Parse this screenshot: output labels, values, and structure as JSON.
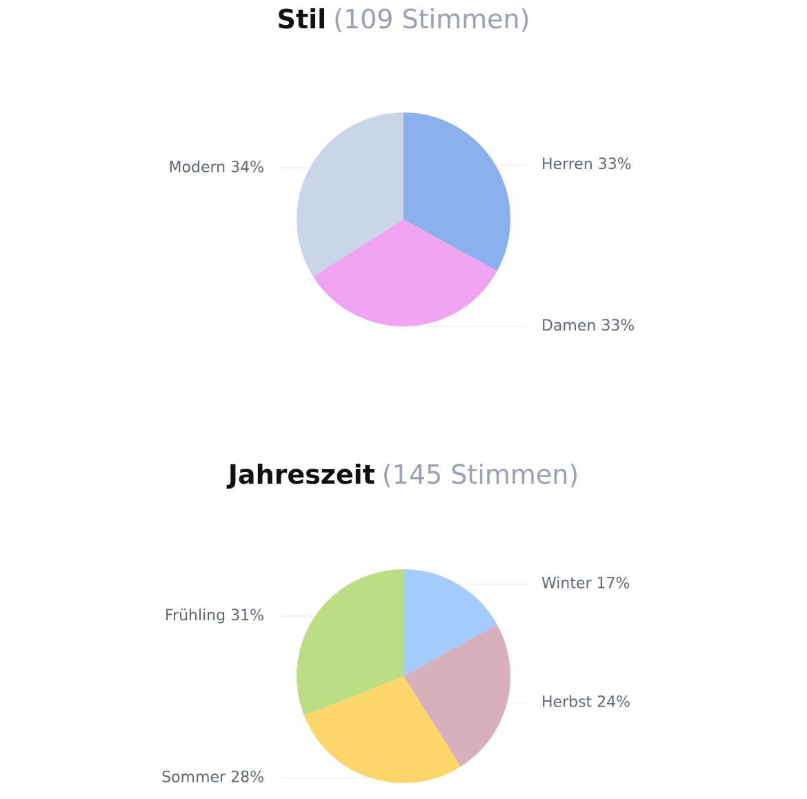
{
  "chart_data": [
    {
      "type": "pie",
      "title": "Stil",
      "subtitle": "(109 Stimmen)",
      "categories": [
        "Herren",
        "Damen",
        "Modern"
      ],
      "values": [
        33,
        33,
        34
      ],
      "value_labels": [
        "33%",
        "33%",
        "34%"
      ],
      "colors": [
        "#8bb0ee",
        "#f0a3f0",
        "#cbd5e8"
      ]
    },
    {
      "type": "pie",
      "title": "Jahreszeit",
      "subtitle": "(145 Stimmen)",
      "categories": [
        "Winter",
        "Herbst",
        "Sommer",
        "Frühling"
      ],
      "values": [
        17,
        24,
        28,
        31
      ],
      "value_labels": [
        "17%",
        "24%",
        "28%",
        "31%"
      ],
      "colors": [
        "#a3cbfc",
        "#d8b0bc",
        "#fcd66a",
        "#bcdd84"
      ]
    }
  ]
}
